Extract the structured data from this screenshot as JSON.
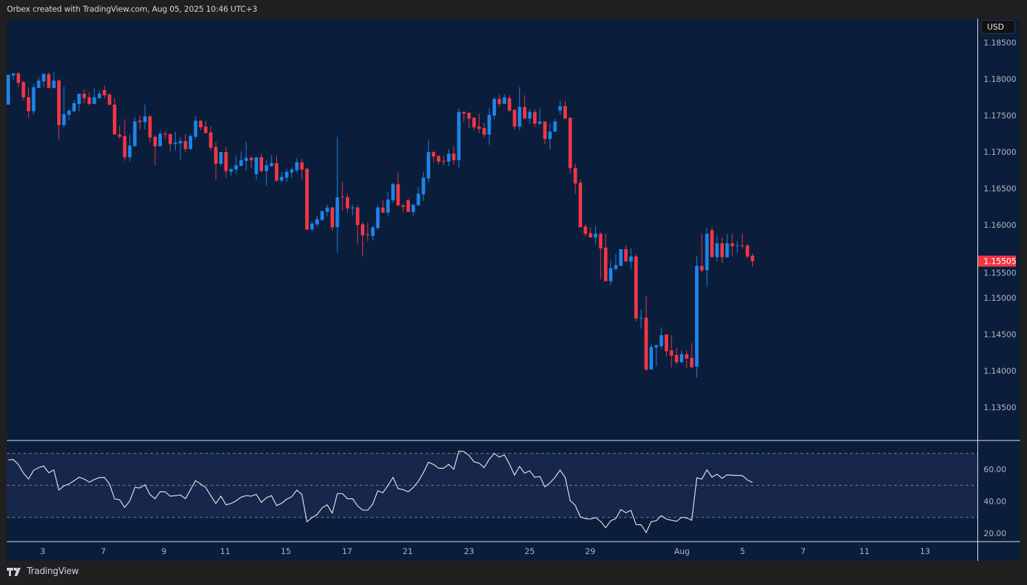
{
  "header": {
    "attribution": "Orbex created with TradingView.com, Aug 05, 2025 10:46 UTC+3"
  },
  "price_axis": {
    "currency_button": "USD",
    "ticks": [
      "1.18500",
      "1.18000",
      "1.17500",
      "1.17000",
      "1.16500",
      "1.16000",
      "1.15500",
      "1.15000",
      "1.14500",
      "1.14000",
      "1.13500"
    ],
    "last_price": "1.15505"
  },
  "rsi_axis": {
    "ticks": [
      "60.00",
      "40.00",
      "20.00"
    ]
  },
  "time_axis": {
    "ticks": [
      "3",
      "7",
      "9",
      "11",
      "15",
      "17",
      "21",
      "23",
      "25",
      "29",
      "Aug",
      "5",
      "7",
      "11",
      "13"
    ]
  },
  "footer": {
    "brand": "TradingView"
  },
  "colors": {
    "up": "#1e84e8",
    "down": "#f23645",
    "background": "#0a1e3b",
    "rsi_band": "#17264b",
    "rsi_line": "#e6e6e6"
  },
  "chart_data": [
    {
      "type": "candlestick",
      "format": "[open, high, low, close]",
      "ylim": [
        1.13,
        1.186
      ],
      "candles": [
        [
          1.1765,
          1.1806,
          1.1765,
          1.1806
        ],
        [
          1.1805,
          1.1808,
          1.1799,
          1.1808
        ],
        [
          1.1808,
          1.181,
          1.1789,
          1.1795
        ],
        [
          1.1796,
          1.1798,
          1.1771,
          1.1775
        ],
        [
          1.1775,
          1.1789,
          1.1747,
          1.1756
        ],
        [
          1.1756,
          1.1794,
          1.1751,
          1.1789
        ],
        [
          1.1788,
          1.1803,
          1.1788,
          1.1798
        ],
        [
          1.1797,
          1.1808,
          1.1789,
          1.1807
        ],
        [
          1.1807,
          1.1809,
          1.1788,
          1.1788
        ],
        [
          1.1788,
          1.181,
          1.1787,
          1.1798
        ],
        [
          1.1798,
          1.18,
          1.1717,
          1.1737
        ],
        [
          1.1737,
          1.179,
          1.1734,
          1.1752
        ],
        [
          1.1751,
          1.1759,
          1.1744,
          1.1757
        ],
        [
          1.1756,
          1.1771,
          1.1754,
          1.1767
        ],
        [
          1.1766,
          1.178,
          1.1756,
          1.178
        ],
        [
          1.178,
          1.1786,
          1.1767,
          1.1774
        ],
        [
          1.1775,
          1.1782,
          1.1764,
          1.1766
        ],
        [
          1.1766,
          1.1788,
          1.1766,
          1.1775
        ],
        [
          1.1774,
          1.1784,
          1.1773,
          1.178
        ],
        [
          1.1785,
          1.1791,
          1.1774,
          1.1778
        ],
        [
          1.1779,
          1.1781,
          1.1764,
          1.1765
        ],
        [
          1.1765,
          1.1774,
          1.1724,
          1.1724
        ],
        [
          1.1724,
          1.1736,
          1.1718,
          1.1721
        ],
        [
          1.1722,
          1.1745,
          1.1688,
          1.1693
        ],
        [
          1.1693,
          1.1724,
          1.1687,
          1.1709
        ],
        [
          1.1708,
          1.1748,
          1.1708,
          1.1742
        ],
        [
          1.1743,
          1.175,
          1.1731,
          1.1741
        ],
        [
          1.1741,
          1.1765,
          1.1731,
          1.1749
        ],
        [
          1.1749,
          1.1751,
          1.1713,
          1.172
        ],
        [
          1.1721,
          1.1723,
          1.1682,
          1.1708
        ],
        [
          1.1708,
          1.1729,
          1.1708,
          1.1725
        ],
        [
          1.1725,
          1.1729,
          1.1718,
          1.1724
        ],
        [
          1.1725,
          1.1725,
          1.1701,
          1.1711
        ],
        [
          1.1711,
          1.1728,
          1.1702,
          1.1713
        ],
        [
          1.1712,
          1.172,
          1.169,
          1.1715
        ],
        [
          1.1715,
          1.1725,
          1.17,
          1.1704
        ],
        [
          1.1704,
          1.1724,
          1.1704,
          1.1722
        ],
        [
          1.1721,
          1.1749,
          1.1718,
          1.1743
        ],
        [
          1.1743,
          1.1744,
          1.173,
          1.1734
        ],
        [
          1.1735,
          1.1743,
          1.1726,
          1.1726
        ],
        [
          1.1727,
          1.1735,
          1.1702,
          1.1706
        ],
        [
          1.1707,
          1.1714,
          1.1662,
          1.1684
        ],
        [
          1.1684,
          1.17,
          1.1681,
          1.17
        ],
        [
          1.17,
          1.1707,
          1.1665,
          1.1674
        ],
        [
          1.1673,
          1.1677,
          1.1668,
          1.1677
        ],
        [
          1.1676,
          1.1695,
          1.167,
          1.1682
        ],
        [
          1.1681,
          1.1701,
          1.1681,
          1.1689
        ],
        [
          1.1688,
          1.1714,
          1.1675,
          1.1692
        ],
        [
          1.1692,
          1.1695,
          1.1678,
          1.1689
        ],
        [
          1.167,
          1.1693,
          1.1662,
          1.1693
        ],
        [
          1.1693,
          1.1698,
          1.1672,
          1.1674
        ],
        [
          1.1674,
          1.1689,
          1.1654,
          1.1682
        ],
        [
          1.1681,
          1.1696,
          1.1679,
          1.1685
        ],
        [
          1.1685,
          1.1695,
          1.1659,
          1.1661
        ],
        [
          1.1661,
          1.1673,
          1.1659,
          1.1666
        ],
        [
          1.1665,
          1.1677,
          1.1659,
          1.1673
        ],
        [
          1.1672,
          1.1679,
          1.1665,
          1.1676
        ],
        [
          1.1675,
          1.1692,
          1.1672,
          1.1686
        ],
        [
          1.1686,
          1.1691,
          1.1662,
          1.1676
        ],
        [
          1.1677,
          1.1679,
          1.1593,
          1.1594
        ],
        [
          1.1594,
          1.1605,
          1.1592,
          1.1602
        ],
        [
          1.1601,
          1.1613,
          1.1598,
          1.1608
        ],
        [
          1.1607,
          1.162,
          1.1605,
          1.1619
        ],
        [
          1.1618,
          1.1628,
          1.1612,
          1.1624
        ],
        [
          1.1624,
          1.1625,
          1.1592,
          1.1597
        ],
        [
          1.1597,
          1.1721,
          1.1562,
          1.1638
        ],
        [
          1.1639,
          1.1659,
          1.162,
          1.1638
        ],
        [
          1.1638,
          1.1643,
          1.1617,
          1.1623
        ],
        [
          1.1623,
          1.1628,
          1.1613,
          1.1624
        ],
        [
          1.1624,
          1.1627,
          1.1573,
          1.16
        ],
        [
          1.1601,
          1.1604,
          1.1557,
          1.1586
        ],
        [
          1.1587,
          1.1603,
          1.1578,
          1.1586
        ],
        [
          1.1585,
          1.1599,
          1.1579,
          1.1597
        ],
        [
          1.1596,
          1.1627,
          1.1593,
          1.1624
        ],
        [
          1.1624,
          1.1634,
          1.1617,
          1.1617
        ],
        [
          1.1617,
          1.1645,
          1.1612,
          1.1635
        ],
        [
          1.1634,
          1.1658,
          1.1631,
          1.1656
        ],
        [
          1.1656,
          1.1672,
          1.1626,
          1.1627
        ],
        [
          1.1627,
          1.1629,
          1.1617,
          1.1625
        ],
        [
          1.1634,
          1.1636,
          1.1618,
          1.1618
        ],
        [
          1.1618,
          1.1628,
          1.1613,
          1.1628
        ],
        [
          1.1627,
          1.1652,
          1.1627,
          1.1643
        ],
        [
          1.1642,
          1.1673,
          1.1633,
          1.1665
        ],
        [
          1.1664,
          1.1717,
          1.1658,
          1.17
        ],
        [
          1.17,
          1.1702,
          1.1686,
          1.1694
        ],
        [
          1.1695,
          1.1695,
          1.1683,
          1.1687
        ],
        [
          1.1688,
          1.1695,
          1.1682,
          1.1687
        ],
        [
          1.1687,
          1.1704,
          1.1681,
          1.1698
        ],
        [
          1.1698,
          1.1709,
          1.1683,
          1.1689
        ],
        [
          1.1689,
          1.176,
          1.1678,
          1.1755
        ],
        [
          1.1755,
          1.1756,
          1.1742,
          1.1753
        ],
        [
          1.1754,
          1.1754,
          1.1733,
          1.1746
        ],
        [
          1.1747,
          1.1748,
          1.173,
          1.1734
        ],
        [
          1.1735,
          1.1753,
          1.1726,
          1.1732
        ],
        [
          1.1733,
          1.174,
          1.172,
          1.1724
        ],
        [
          1.1724,
          1.176,
          1.171,
          1.1751
        ],
        [
          1.175,
          1.1775,
          1.1745,
          1.1773
        ],
        [
          1.1773,
          1.1779,
          1.1762,
          1.1766
        ],
        [
          1.1766,
          1.178,
          1.1766,
          1.1775
        ],
        [
          1.1774,
          1.1778,
          1.1755,
          1.1757
        ],
        [
          1.1758,
          1.1759,
          1.1731,
          1.1735
        ],
        [
          1.1735,
          1.1789,
          1.173,
          1.1762
        ],
        [
          1.1762,
          1.1778,
          1.1745,
          1.1746
        ],
        [
          1.1746,
          1.1759,
          1.1739,
          1.1755
        ],
        [
          1.1755,
          1.1759,
          1.1734,
          1.1739
        ],
        [
          1.1739,
          1.176,
          1.1737,
          1.1742
        ],
        [
          1.1742,
          1.1742,
          1.1711,
          1.1718
        ],
        [
          1.1718,
          1.1739,
          1.1704,
          1.1728
        ],
        [
          1.1728,
          1.1746,
          1.1728,
          1.1742
        ],
        [
          1.1757,
          1.1771,
          1.1751,
          1.1763
        ],
        [
          1.1763,
          1.177,
          1.1745,
          1.1746
        ],
        [
          1.1747,
          1.1748,
          1.167,
          1.1678
        ],
        [
          1.1678,
          1.1684,
          1.1643,
          1.1657
        ],
        [
          1.1658,
          1.1662,
          1.1597,
          1.1597
        ],
        [
          1.1598,
          1.1601,
          1.1584,
          1.1588
        ],
        [
          1.1589,
          1.1597,
          1.1583,
          1.1583
        ],
        [
          1.1583,
          1.1599,
          1.1574,
          1.1588
        ],
        [
          1.1588,
          1.159,
          1.1526,
          1.1568
        ],
        [
          1.1569,
          1.1588,
          1.1523,
          1.1523
        ],
        [
          1.1523,
          1.1551,
          1.1518,
          1.1541
        ],
        [
          1.154,
          1.156,
          1.1537,
          1.1545
        ],
        [
          1.1544,
          1.1567,
          1.1544,
          1.1567
        ],
        [
          1.1567,
          1.1572,
          1.155,
          1.155
        ],
        [
          1.155,
          1.1568,
          1.154,
          1.1557
        ],
        [
          1.1557,
          1.156,
          1.1468,
          1.1472
        ],
        [
          1.1472,
          1.1484,
          1.1458,
          1.1473
        ],
        [
          1.1473,
          1.1503,
          1.14,
          1.1402
        ],
        [
          1.1402,
          1.1437,
          1.1402,
          1.1433
        ],
        [
          1.1432,
          1.1437,
          1.1407,
          1.1435
        ],
        [
          1.1434,
          1.146,
          1.143,
          1.1449
        ],
        [
          1.145,
          1.145,
          1.142,
          1.1427
        ],
        [
          1.1428,
          1.1449,
          1.1405,
          1.1421
        ],
        [
          1.1422,
          1.1432,
          1.1409,
          1.1412
        ],
        [
          1.1412,
          1.1428,
          1.1411,
          1.1423
        ],
        [
          1.1423,
          1.1428,
          1.1404,
          1.1417
        ],
        [
          1.1418,
          1.1438,
          1.1405,
          1.1405
        ],
        [
          1.1406,
          1.1558,
          1.1391,
          1.1544
        ],
        [
          1.1544,
          1.1588,
          1.1535,
          1.1538
        ],
        [
          1.1538,
          1.1596,
          1.1515,
          1.1588
        ],
        [
          1.1593,
          1.1596,
          1.1556,
          1.1556
        ],
        [
          1.1556,
          1.1586,
          1.155,
          1.1575
        ],
        [
          1.1575,
          1.1583,
          1.1548,
          1.1556
        ],
        [
          1.1556,
          1.1588,
          1.1555,
          1.1575
        ],
        [
          1.1575,
          1.1588,
          1.1557,
          1.1571
        ],
        [
          1.1571,
          1.1578,
          1.1562,
          1.1572
        ],
        [
          1.1572,
          1.1588,
          1.1568,
          1.1571
        ],
        [
          1.1572,
          1.1574,
          1.1554,
          1.1557
        ],
        [
          1.1558,
          1.1561,
          1.1543,
          1.15505
        ]
      ]
    },
    {
      "type": "line",
      "ylim": [
        14,
        77
      ],
      "bands": [
        70,
        50,
        30
      ],
      "values": [
        65.9,
        66.1,
        63.0,
        57.7,
        54.0,
        59.4,
        61.1,
        62.1,
        57.9,
        59.6,
        47.1,
        49.7,
        50.9,
        52.9,
        55.1,
        54.0,
        52.0,
        53.7,
        54.9,
        54.9,
        50.9,
        41.6,
        41.0,
        36.3,
        40.3,
        48.7,
        48.4,
        50.4,
        44.3,
        41.7,
        46.1,
        46.0,
        43.3,
        43.6,
        44.0,
        41.7,
        47.4,
        53.0,
        50.9,
        48.7,
        43.6,
        38.7,
        43.3,
        37.9,
        38.7,
        40.4,
        42.7,
        43.6,
        43.3,
        44.4,
        39.4,
        42.3,
        43.6,
        37.4,
        38.9,
        41.4,
        43.0,
        47.1,
        44.3,
        27.3,
        29.9,
        31.9,
        36.0,
        37.9,
        32.7,
        44.9,
        44.9,
        41.7,
        41.7,
        37.3,
        34.6,
        34.6,
        38.4,
        46.7,
        45.4,
        50.1,
        55.0,
        48.0,
        47.4,
        46.0,
        48.7,
        52.6,
        58.0,
        64.4,
        63.1,
        60.7,
        60.7,
        63.1,
        60.1,
        71.4,
        71.1,
        68.7,
        64.7,
        63.9,
        61.1,
        66.3,
        69.9,
        67.7,
        69.0,
        63.3,
        56.4,
        61.9,
        57.6,
        59.1,
        55.0,
        55.6,
        49.1,
        51.6,
        55.0,
        59.6,
        55.0,
        40.6,
        37.6,
        30.4,
        29.3,
        29.0,
        30.0,
        27.6,
        23.6,
        28.0,
        29.3,
        35.0,
        33.0,
        34.4,
        25.6,
        25.4,
        20.6,
        27.4,
        28.0,
        31.1,
        29.0,
        28.3,
        27.6,
        30.1,
        29.7,
        28.3,
        54.7,
        53.9,
        59.7,
        55.1,
        57.0,
        54.4,
        56.6,
        56.3,
        56.3,
        56.1,
        53.4,
        51.9
      ]
    }
  ]
}
